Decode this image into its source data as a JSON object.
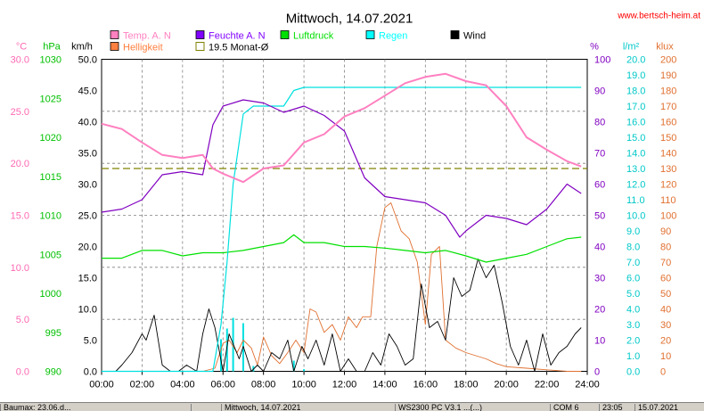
{
  "chart_data": {
    "type": "line",
    "title": "Mittwoch, 14.07.2021",
    "source_label": "www.bertsch-heim.at",
    "x_ticks": [
      "00:00",
      "02:00",
      "04:00",
      "06:00",
      "08:00",
      "10:00",
      "12:00",
      "14:00",
      "16:00",
      "18:00",
      "20:00",
      "22:00",
      "24:00"
    ],
    "x_range_hours": [
      0,
      24
    ],
    "axes": [
      {
        "id": "temp",
        "unit": "°C",
        "color": "#ff69b4",
        "range": [
          0,
          30
        ],
        "ticks": [
          "0.0",
          "5.0",
          "10.0",
          "15.0",
          "20.0",
          "25.0",
          "30.0"
        ]
      },
      {
        "id": "press",
        "unit": "hPa",
        "color": "#00c000",
        "range": [
          990,
          1030
        ],
        "ticks": [
          "990",
          "995",
          "1000",
          "1005",
          "1010",
          "1015",
          "1020",
          "1025",
          "1030"
        ]
      },
      {
        "id": "wind",
        "unit": "km/h",
        "color": "#000000",
        "range": [
          0,
          50
        ],
        "ticks": [
          "0.0",
          "5.0",
          "10.0",
          "15.0",
          "20.0",
          "25.0",
          "30.0",
          "35.0",
          "40.0",
          "45.0",
          "50.0"
        ]
      },
      {
        "id": "hum",
        "unit": "%",
        "color": "#8000c0",
        "range": [
          0,
          100
        ],
        "ticks": [
          "0",
          "10",
          "20",
          "30",
          "40",
          "50",
          "60",
          "70",
          "80",
          "90",
          "100"
        ]
      },
      {
        "id": "rain",
        "unit": "l/m²",
        "color": "#00c8c8",
        "range": [
          0,
          20
        ],
        "ticks": [
          "0.0",
          "1.0",
          "2.0",
          "3.0",
          "4.0",
          "5.0",
          "6.0",
          "7.0",
          "8.0",
          "9.0",
          "10.0",
          "11.0",
          "12.0",
          "13.0",
          "14.0",
          "15.0",
          "16.0",
          "17.0",
          "18.0",
          "19.0",
          "20.0"
        ]
      },
      {
        "id": "lux",
        "unit": "klux",
        "color": "#e07030",
        "range": [
          0,
          200
        ],
        "ticks": [
          "0",
          "10",
          "20",
          "30",
          "40",
          "50",
          "60",
          "70",
          "80",
          "90",
          "100",
          "110",
          "120",
          "130",
          "140",
          "150",
          "160",
          "170",
          "180",
          "190",
          "200"
        ]
      }
    ],
    "legend": [
      {
        "label": "Temp. A. N",
        "color": "#ff80c0",
        "kind": "box"
      },
      {
        "label": "Feuchte A. N",
        "color": "#8000ff",
        "kind": "box"
      },
      {
        "label": "Luftdruck",
        "color": "#00e000",
        "kind": "box"
      },
      {
        "label": "Regen",
        "color": "#00ffff",
        "kind": "box"
      },
      {
        "label": "Wind",
        "color": "#000000",
        "kind": "box"
      },
      {
        "label": "Helligkeit",
        "color": "#ff8040",
        "kind": "box"
      },
      {
        "label": "19.5 Monat-Ø",
        "color": "#808000",
        "kind": "outline"
      }
    ],
    "series": [
      {
        "name": "Temp. A. N",
        "axis": "temp",
        "color": "#ff80c0",
        "width": 2,
        "x": [
          0,
          1,
          2,
          3,
          4,
          5,
          5.5,
          6,
          7,
          8,
          9,
          10,
          11,
          12,
          13,
          14,
          15,
          16,
          17,
          18,
          19,
          20,
          21,
          22,
          23,
          23.7
        ],
        "values": [
          23.8,
          23.3,
          22,
          20.8,
          20.5,
          20.8,
          19.5,
          19,
          18.2,
          19.5,
          19.8,
          22,
          22.8,
          24.5,
          25.3,
          26.5,
          27.7,
          28.3,
          28.6,
          27.9,
          27.5,
          25.5,
          22.5,
          21.3,
          20.2,
          19.7
        ]
      },
      {
        "name": "Feuchte A. N",
        "axis": "hum",
        "color": "#8000c0",
        "width": 1.2,
        "x": [
          0,
          1,
          2,
          3,
          4,
          5,
          5.5,
          6,
          7,
          8,
          9,
          10,
          11,
          12,
          13,
          14,
          15,
          16,
          17,
          17.7,
          18,
          19,
          20,
          21,
          22,
          23,
          23.7
        ],
        "values": [
          51,
          52,
          55,
          63,
          64,
          63,
          79,
          85,
          87,
          86,
          83,
          85,
          82,
          77,
          62,
          56,
          55,
          54,
          50,
          43,
          45,
          50,
          49,
          47,
          52,
          60,
          57
        ]
      },
      {
        "name": "Luftdruck",
        "axis": "press",
        "color": "#00e000",
        "width": 1.2,
        "x": [
          0,
          1,
          2,
          3,
          4,
          5,
          6,
          7,
          8,
          9,
          9.5,
          10,
          11,
          12,
          13,
          14,
          15,
          16,
          17,
          18,
          19,
          20,
          21,
          22,
          23,
          23.7
        ],
        "values": [
          1004.5,
          1004.5,
          1005.5,
          1005.5,
          1004.8,
          1005.2,
          1005.2,
          1005.5,
          1006,
          1006.5,
          1007.5,
          1006.5,
          1006.5,
          1006,
          1006,
          1005.8,
          1005.5,
          1005.2,
          1005.5,
          1004.8,
          1004,
          1004.5,
          1005,
          1006,
          1007,
          1007.2
        ]
      },
      {
        "name": "Regen",
        "axis": "rain",
        "color": "#00e0e0",
        "width": 1.2,
        "x": [
          0,
          5.5,
          5.9,
          6.2,
          6.5,
          7,
          7.5,
          9,
          9.5,
          10,
          11,
          12,
          13,
          14,
          15,
          16,
          17,
          18,
          19,
          20,
          21,
          22,
          23,
          23.7
        ],
        "values": [
          0,
          0,
          3,
          7,
          12,
          16.5,
          17,
          17,
          18,
          18.2,
          18.2,
          18.2,
          18.2,
          18.2,
          18.2,
          18.2,
          18.2,
          18.2,
          18.2,
          18.2,
          18.2,
          18.2,
          18.2,
          18.2
        ]
      },
      {
        "name": "Wind",
        "axis": "wind",
        "color": "#000000",
        "width": 0.9,
        "x": [
          0,
          0.7,
          1,
          1.5,
          2,
          2.2,
          2.6,
          3,
          3.4,
          3.8,
          4.2,
          4.7,
          5,
          5.3,
          5.6,
          6,
          6.3,
          6.8,
          7,
          7.4,
          7.7,
          8,
          8.4,
          8.8,
          9.2,
          9.5,
          9.9,
          10.2,
          10.6,
          11,
          11.4,
          11.8,
          12.2,
          12.6,
          13,
          13.4,
          13.8,
          14.2,
          14.6,
          15,
          15.4,
          15.8,
          16.2,
          16.6,
          17,
          17.4,
          17.8,
          18.2,
          18.6,
          19,
          19.4,
          19.8,
          20.2,
          20.6,
          21,
          21.4,
          21.8,
          22.2,
          22.6,
          23,
          23.4,
          23.7
        ],
        "values": [
          0,
          0,
          1,
          3,
          6,
          5,
          9,
          1,
          0,
          0,
          1,
          0,
          6,
          10,
          7,
          0,
          6,
          2,
          4,
          0,
          1,
          0,
          3,
          2,
          5,
          0,
          4,
          2,
          5,
          1,
          6,
          0,
          2,
          0,
          0,
          3,
          1,
          6,
          4,
          1,
          2,
          14,
          7,
          8,
          5,
          15,
          12,
          13,
          18,
          15,
          17,
          11,
          4,
          1,
          5,
          0,
          6,
          1,
          3,
          4,
          6,
          7
        ]
      },
      {
        "name": "Helligkeit",
        "axis": "lux",
        "color": "#e07030",
        "width": 0.9,
        "x": [
          0,
          5,
          5.6,
          6,
          6.3,
          6.7,
          7,
          7.4,
          7.7,
          8,
          8.4,
          8.8,
          9.2,
          9.6,
          10,
          10.3,
          10.6,
          11,
          11.4,
          11.8,
          12.2,
          12.6,
          12.9,
          13.3,
          13.6,
          14,
          14.3,
          14.8,
          15.2,
          15.6,
          16,
          16.3,
          16.7,
          17,
          17.5,
          18,
          18.5,
          19,
          19.5,
          20,
          21,
          22,
          23,
          23.7
        ],
        "values": [
          0,
          0,
          2,
          18,
          20,
          12,
          20,
          15,
          4,
          22,
          10,
          5,
          12,
          20,
          12,
          40,
          38,
          25,
          30,
          20,
          35,
          28,
          35,
          35,
          80,
          105,
          108,
          90,
          85,
          70,
          30,
          75,
          80,
          20,
          15,
          12,
          10,
          8,
          5,
          3,
          2,
          1,
          0,
          0
        ]
      }
    ],
    "reference_lines": [
      {
        "name": "19.5 Monat-Ø",
        "axis": "temp",
        "value": 19.5,
        "color": "#808000",
        "style": "dashed"
      }
    ]
  },
  "statusbar": {
    "segments": [
      "Baumax: 23.06.d...",
      "",
      "Mittwoch, 14.07.2021",
      "WS2300 PC V3.1 ...(...)",
      "COM 6",
      "23:05",
      "15.07.2021"
    ]
  }
}
